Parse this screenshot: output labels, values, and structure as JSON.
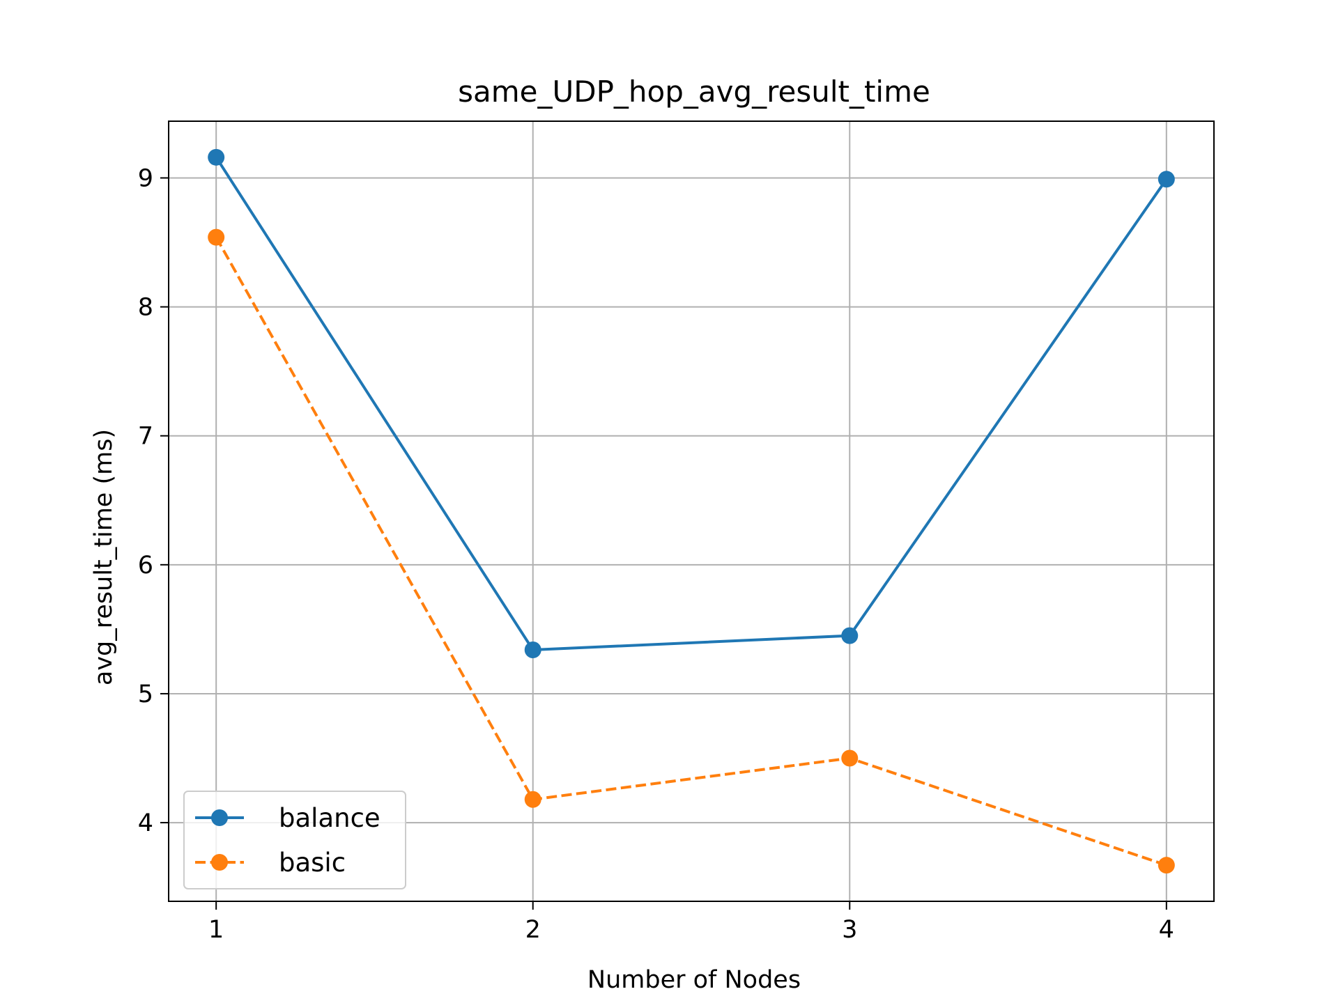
{
  "chart_data": {
    "type": "line",
    "title": "same_UDP_hop_avg_result_time",
    "xlabel": "Number of Nodes",
    "ylabel": "avg_result_time (ms)",
    "x": [
      1,
      2,
      3,
      4
    ],
    "x_ticks": [
      "1",
      "2",
      "3",
      "4"
    ],
    "y_ticks": [
      "4",
      "5",
      "6",
      "7",
      "8",
      "9"
    ],
    "xlim": [
      0.85,
      4.15
    ],
    "ylim": [
      3.39,
      9.44
    ],
    "grid": true,
    "legend_position": "lower-left",
    "series": [
      {
        "name": "balance",
        "values": [
          9.16,
          5.34,
          5.45,
          8.99
        ],
        "color": "#1f77b4",
        "line_style": "solid",
        "marker": "circle"
      },
      {
        "name": "basic",
        "values": [
          8.54,
          4.18,
          4.5,
          3.67
        ],
        "color": "#ff7f0e",
        "line_style": "dashed",
        "marker": "circle"
      }
    ]
  }
}
